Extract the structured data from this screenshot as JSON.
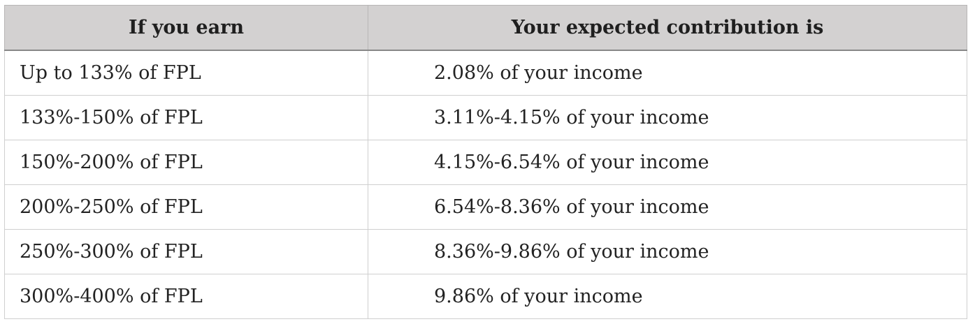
{
  "table": {
    "headers": [
      "If you earn",
      "Your expected contribution is"
    ],
    "rows": [
      [
        "Up to 133% of FPL",
        "2.08% of your income"
      ],
      [
        "133%-150% of FPL",
        "3.11%-4.15% of your income"
      ],
      [
        "150%-200% of FPL",
        "4.15%-6.54% of your income"
      ],
      [
        "200%-250% of FPL",
        "6.54%-8.36% of your income"
      ],
      [
        "250%-300% of FPL",
        "8.36%-9.86% of your income"
      ],
      [
        "300%-400% of FPL",
        "9.86% of your income"
      ]
    ]
  },
  "colors": {
    "header_background": "#d3d1d1",
    "grid_lines": "#cfcfcf",
    "text": "#222222"
  }
}
